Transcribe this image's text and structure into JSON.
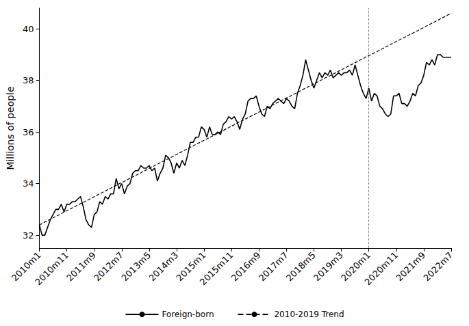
{
  "chart_data": {
    "type": "line",
    "y_label": "Millions of people",
    "categories": [
      "2010m1",
      null,
      null,
      null,
      null,
      null,
      null,
      null,
      null,
      null,
      "2010m11",
      null,
      null,
      null,
      null,
      null,
      null,
      null,
      null,
      null,
      "2011m9",
      null,
      null,
      null,
      null,
      null,
      null,
      null,
      null,
      null,
      "2012m7",
      null,
      null,
      null,
      null,
      null,
      null,
      null,
      null,
      null,
      "2013m5",
      null,
      null,
      null,
      null,
      null,
      null,
      null,
      null,
      null,
      "2014m3",
      null,
      null,
      null,
      null,
      null,
      null,
      null,
      null,
      null,
      "2015m1",
      null,
      null,
      null,
      null,
      null,
      null,
      null,
      null,
      null,
      "2015m11",
      null,
      null,
      null,
      null,
      null,
      null,
      null,
      null,
      null,
      "2016m9",
      null,
      null,
      null,
      null,
      null,
      null,
      null,
      null,
      null,
      "2017m7",
      null,
      null,
      null,
      null,
      null,
      null,
      null,
      null,
      null,
      "2018m5",
      null,
      null,
      null,
      null,
      null,
      null,
      null,
      null,
      null,
      "2019m3",
      null,
      null,
      null,
      null,
      null,
      null,
      null,
      null,
      null,
      "2020m1",
      null,
      null,
      null,
      null,
      null,
      null,
      null,
      null,
      null,
      "2020m11",
      null,
      null,
      null,
      null,
      null,
      null,
      null,
      null,
      null,
      "2021m9",
      null,
      null,
      null,
      null,
      null,
      null,
      null,
      null,
      null,
      "2022m7"
    ],
    "series": [
      {
        "name": "Foreign-born",
        "color": "#000000",
        "line_style": "solid",
        "values": [
          32.4,
          32.0,
          32.0,
          32.3,
          32.6,
          32.8,
          33.0,
          33.0,
          33.2,
          32.9,
          33.2,
          33.2,
          33.3,
          33.3,
          33.4,
          33.5,
          33.1,
          32.6,
          32.4,
          32.3,
          32.8,
          32.9,
          33.3,
          33.2,
          33.5,
          33.4,
          33.6,
          33.6,
          34.2,
          33.8,
          34.0,
          33.6,
          33.9,
          34.0,
          34.4,
          34.5,
          34.5,
          34.7,
          34.6,
          34.6,
          34.7,
          34.5,
          34.6,
          34.1,
          34.4,
          34.6,
          35.1,
          35.0,
          34.8,
          34.4,
          34.8,
          34.6,
          34.9,
          34.7,
          35.1,
          35.6,
          35.6,
          35.8,
          35.8,
          36.2,
          36.1,
          35.8,
          36.2,
          35.9,
          35.9,
          36.0,
          35.9,
          36.3,
          36.4,
          36.6,
          36.5,
          36.6,
          36.4,
          36.1,
          36.5,
          36.7,
          37.2,
          37.3,
          37.3,
          37.4,
          37.0,
          36.7,
          36.6,
          37.0,
          36.9,
          37.1,
          37.2,
          37.3,
          37.2,
          37.1,
          37.3,
          37.2,
          37.0,
          36.9,
          37.5,
          37.8,
          38.2,
          38.8,
          38.4,
          38.0,
          37.7,
          38.0,
          38.3,
          38.1,
          38.3,
          38.2,
          38.4,
          38.1,
          38.2,
          38.3,
          38.2,
          38.3,
          38.3,
          38.4,
          38.2,
          38.6,
          38.2,
          37.8,
          37.5,
          37.3,
          37.7,
          37.2,
          37.5,
          37.4,
          37.0,
          36.9,
          36.7,
          36.6,
          36.7,
          37.4,
          37.4,
          37.5,
          37.1,
          37.1,
          37.0,
          37.2,
          37.5,
          37.4,
          37.8,
          37.9,
          38.2,
          38.7,
          38.6,
          38.8,
          38.6,
          39.0,
          39.0,
          38.9,
          38.9,
          38.9,
          38.9
        ]
      },
      {
        "name": "2010-2019 Trend",
        "color": "#000000",
        "line_style": "dashed",
        "values": [
          32.4,
          32.45,
          32.51,
          32.56,
          32.62,
          32.67,
          32.73,
          32.78,
          32.84,
          32.89,
          32.95,
          33.0,
          33.06,
          33.11,
          33.17,
          33.22,
          33.27,
          33.33,
          33.38,
          33.44,
          33.49,
          33.55,
          33.6,
          33.66,
          33.71,
          33.77,
          33.82,
          33.88,
          33.93,
          33.99,
          34.04,
          34.09,
          34.15,
          34.2,
          34.26,
          34.31,
          34.37,
          34.42,
          34.48,
          34.53,
          34.59,
          34.64,
          34.7,
          34.75,
          34.81,
          34.86,
          34.91,
          34.97,
          35.02,
          35.08,
          35.13,
          35.19,
          35.24,
          35.3,
          35.35,
          35.41,
          35.46,
          35.52,
          35.57,
          35.63,
          35.68,
          35.73,
          35.79,
          35.84,
          35.9,
          35.95,
          36.01,
          36.06,
          36.12,
          36.17,
          36.23,
          36.28,
          36.34,
          36.39,
          36.45,
          36.5,
          36.55,
          36.61,
          36.66,
          36.72,
          36.77,
          36.83,
          36.88,
          36.94,
          36.99,
          37.05,
          37.1,
          37.16,
          37.21,
          37.27,
          37.32,
          37.37,
          37.43,
          37.48,
          37.54,
          37.59,
          37.65,
          37.7,
          37.76,
          37.81,
          37.87,
          37.92,
          37.98,
          38.03,
          38.09,
          38.14,
          38.19,
          38.25,
          38.3,
          38.36,
          38.41,
          38.47,
          38.52,
          38.58,
          38.63,
          38.69,
          38.74,
          38.8,
          38.85,
          38.91,
          38.96,
          39.01,
          39.07,
          39.12,
          39.18,
          39.23,
          39.29,
          39.34,
          39.4,
          39.45,
          39.51,
          39.56,
          39.62,
          39.67,
          39.73,
          39.78,
          39.83,
          39.89,
          39.94,
          40.0,
          40.05,
          40.11,
          40.16,
          40.22,
          40.27,
          40.33,
          40.38,
          40.44,
          40.49,
          40.55,
          40.6
        ]
      }
    ],
    "reference_line": {
      "x": "2020m1",
      "line_style": "dotted"
    },
    "ylim": [
      31.5,
      40.8
    ],
    "yticks": [
      32,
      34,
      36,
      38,
      40
    ],
    "grid": false,
    "legend": "bottom"
  }
}
